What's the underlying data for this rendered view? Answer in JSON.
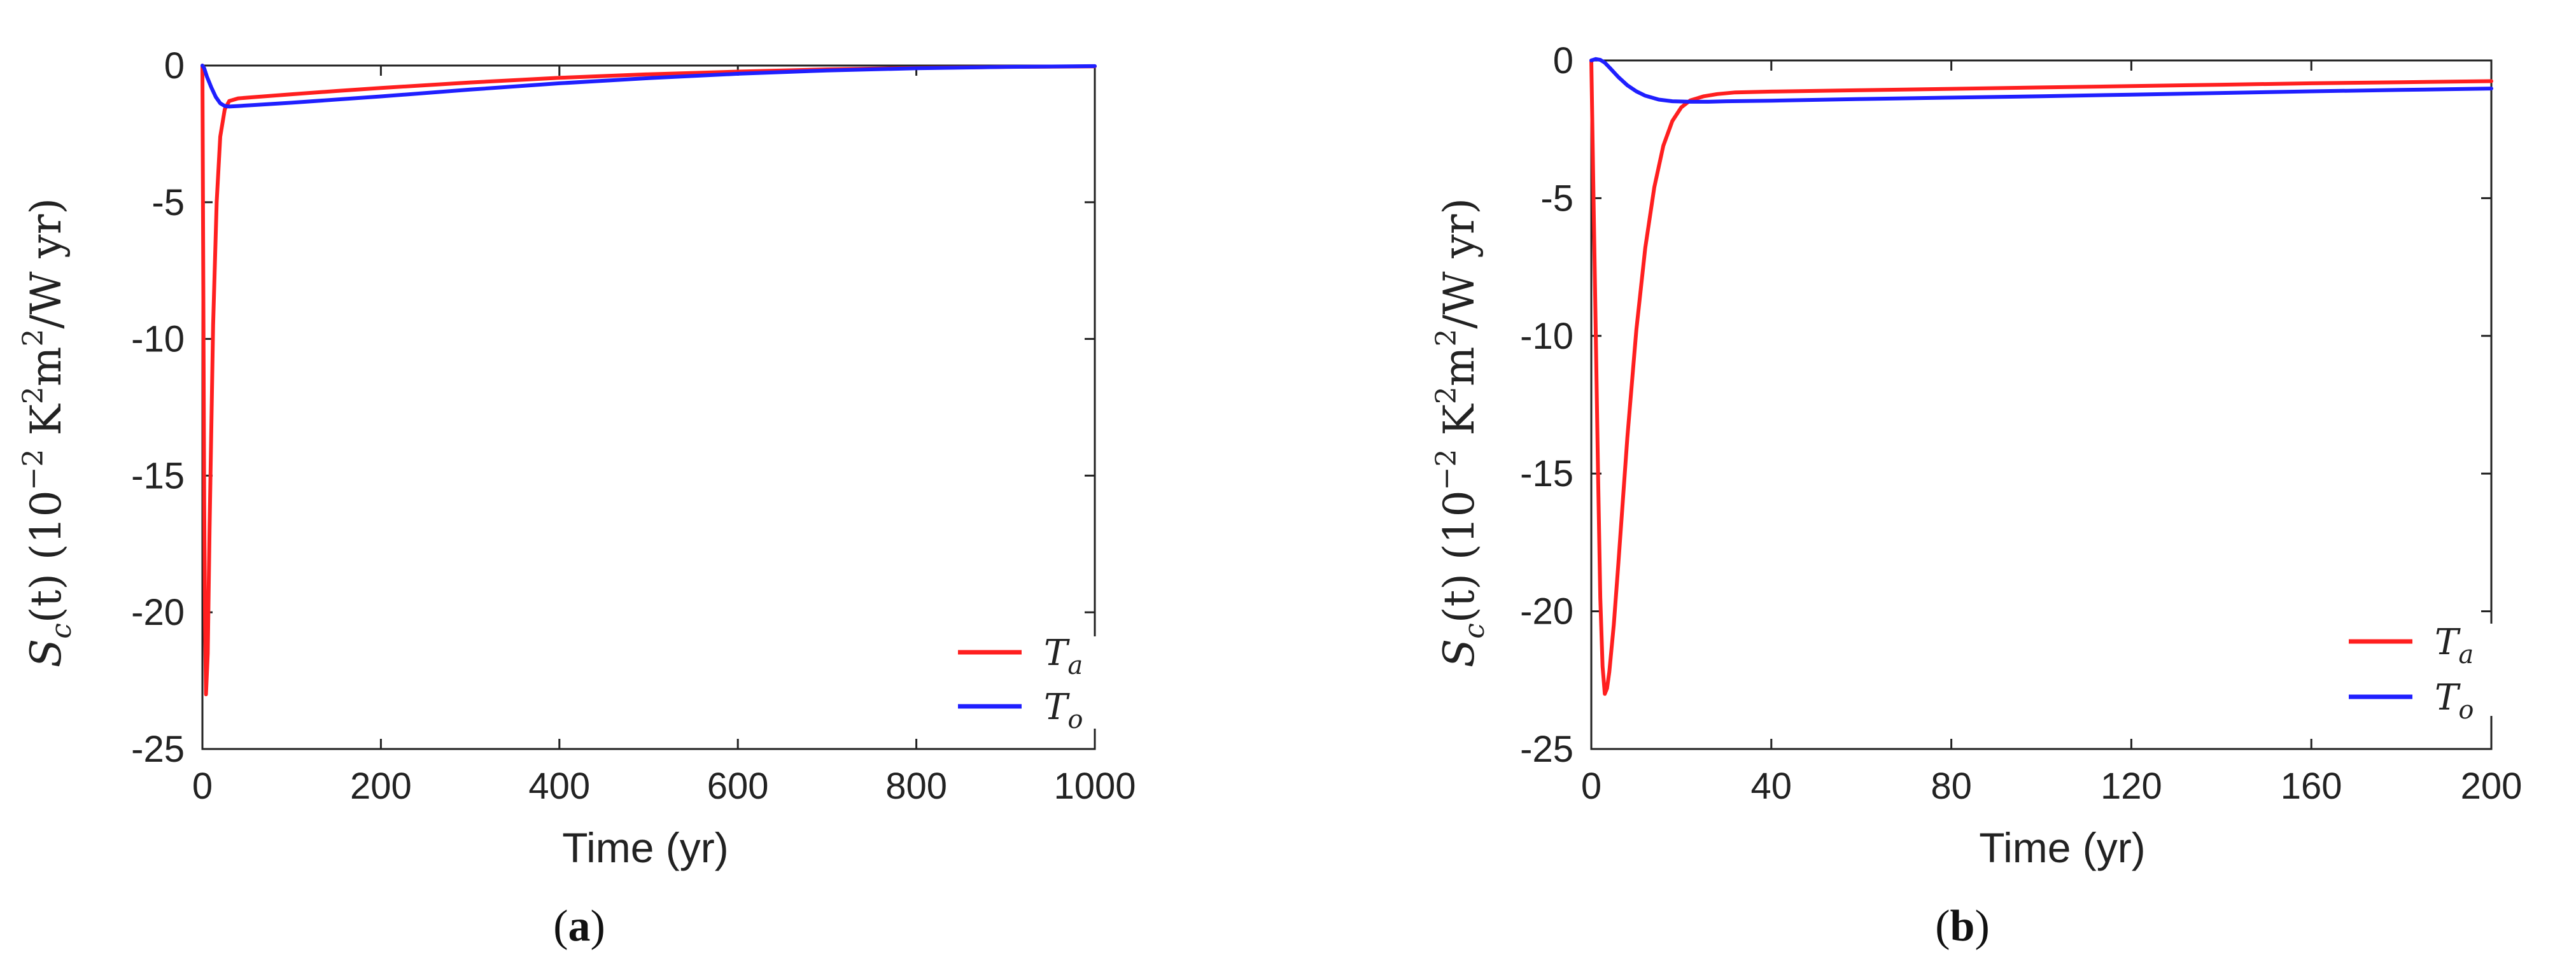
{
  "chart_data": [
    {
      "panel": "a",
      "panel_label_open": "(",
      "panel_label_letter": "a",
      "panel_label_close": ")",
      "type": "line",
      "xlabel": "Time (yr)",
      "ylabel_parts": {
        "s": "S",
        "sub_c": "c",
        "t": "(t) (10",
        "exp": "−2",
        "units1": " K",
        "sup2a": "2",
        "units2": "m",
        "sup2b": "2",
        "units3": "/W yr)"
      },
      "xlim": [
        0,
        1000
      ],
      "ylim": [
        -25,
        0
      ],
      "xticks": [
        0,
        200,
        400,
        600,
        800,
        1000
      ],
      "xtick_labels": [
        "0",
        "200",
        "400",
        "600",
        "800",
        "1000"
      ],
      "yticks": [
        0,
        -5,
        -10,
        -15,
        -20,
        -25
      ],
      "ytick_labels": [
        "0",
        "-5",
        "-10",
        "-15",
        "-20",
        "-25"
      ],
      "legend_position": "bottom-right",
      "series": [
        {
          "name": "T_a",
          "name_main": "T",
          "name_sub": "a",
          "color": "#ff1f1f",
          "x": [
            0,
            1,
            2,
            3,
            4,
            6,
            8,
            12,
            16,
            20,
            25,
            30,
            40,
            60,
            100,
            150,
            200,
            300,
            400,
            500,
            600,
            700,
            800,
            900,
            1000
          ],
          "y": [
            0,
            -8,
            -16,
            -20.5,
            -23,
            -21.5,
            -17,
            -9.5,
            -5,
            -2.6,
            -1.6,
            -1.3,
            -1.2,
            -1.15,
            -1.05,
            -0.93,
            -0.82,
            -0.62,
            -0.45,
            -0.32,
            -0.22,
            -0.14,
            -0.09,
            -0.05,
            -0.03
          ]
        },
        {
          "name": "T_o",
          "name_main": "T",
          "name_sub": "o",
          "color": "#1f1fff",
          "x": [
            0,
            2,
            5,
            10,
            15,
            20,
            25,
            30,
            40,
            60,
            100,
            200,
            300,
            400,
            500,
            600,
            700,
            800,
            900,
            1000
          ],
          "y": [
            0,
            -0.1,
            -0.4,
            -0.8,
            -1.15,
            -1.38,
            -1.48,
            -1.5,
            -1.48,
            -1.44,
            -1.36,
            -1.13,
            -0.88,
            -0.65,
            -0.46,
            -0.3,
            -0.18,
            -0.1,
            -0.05,
            -0.02
          ]
        }
      ]
    },
    {
      "panel": "b",
      "panel_label_open": "(",
      "panel_label_letter": "b",
      "panel_label_close": ")",
      "type": "line",
      "xlabel": "Time (yr)",
      "ylabel_parts": {
        "s": "S",
        "sub_c": "c",
        "t": "(t) (10",
        "exp": "−2",
        "units1": " K",
        "sup2a": "2",
        "units2": "m",
        "sup2b": "2",
        "units3": "/W yr)"
      },
      "xlim": [
        0,
        200
      ],
      "ylim": [
        -25,
        0
      ],
      "xticks": [
        0,
        40,
        80,
        120,
        160,
        200
      ],
      "xtick_labels": [
        "0",
        "40",
        "80",
        "120",
        "160",
        "200"
      ],
      "yticks": [
        0,
        -5,
        -10,
        -15,
        -20,
        -25
      ],
      "ytick_labels": [
        "0",
        "-5",
        "-10",
        "-15",
        "-20",
        "-25"
      ],
      "legend_position": "bottom-right",
      "series": [
        {
          "name": "T_a",
          "name_main": "T",
          "name_sub": "a",
          "color": "#ff1f1f",
          "x": [
            0,
            0.5,
            1,
            1.5,
            2,
            2.5,
            3,
            3.5,
            4,
            5,
            6,
            7,
            8,
            10,
            12,
            14,
            16,
            18,
            20,
            22,
            25,
            28,
            32,
            40,
            60,
            80,
            100,
            120,
            140,
            160,
            180,
            200
          ],
          "y": [
            0,
            -5,
            -10,
            -15,
            -19.5,
            -22,
            -23,
            -22.8,
            -22.2,
            -20.5,
            -18.3,
            -16,
            -13.7,
            -9.8,
            -6.8,
            -4.6,
            -3.1,
            -2.2,
            -1.7,
            -1.45,
            -1.3,
            -1.22,
            -1.16,
            -1.13,
            -1.08,
            -1.03,
            -0.98,
            -0.93,
            -0.88,
            -0.83,
            -0.79,
            -0.75
          ]
        },
        {
          "name": "T_o",
          "name_main": "T",
          "name_sub": "o",
          "color": "#1f1fff",
          "x": [
            0,
            1,
            2,
            3,
            4,
            6,
            8,
            10,
            12,
            15,
            18,
            22,
            26,
            30,
            40,
            60,
            80,
            100,
            120,
            140,
            160,
            180,
            200
          ],
          "y": [
            0,
            0.05,
            0.02,
            -0.08,
            -0.25,
            -0.6,
            -0.9,
            -1.12,
            -1.28,
            -1.42,
            -1.48,
            -1.5,
            -1.5,
            -1.48,
            -1.46,
            -1.4,
            -1.35,
            -1.3,
            -1.24,
            -1.18,
            -1.12,
            -1.07,
            -1.02
          ]
        }
      ]
    }
  ]
}
